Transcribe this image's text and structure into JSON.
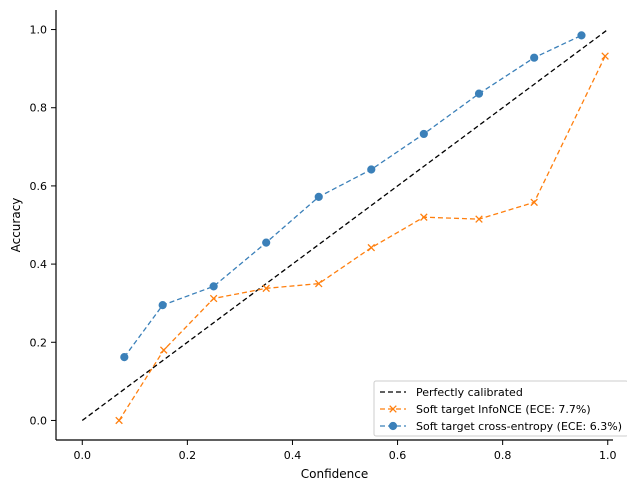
{
  "chart_data": {
    "type": "line",
    "title": "",
    "xlabel": "Confidence",
    "ylabel": "Accuracy",
    "xlim": [
      -0.05,
      1.01
    ],
    "ylim": [
      -0.05,
      1.05
    ],
    "xticks": [
      0.0,
      0.2,
      0.4,
      0.6,
      0.8,
      1.0
    ],
    "yticks": [
      0.0,
      0.2,
      0.4,
      0.6,
      0.8,
      1.0
    ],
    "xtick_labels": [
      "0.0",
      "0.2",
      "0.4",
      "0.6",
      "0.8",
      "1.0"
    ],
    "ytick_labels": [
      "0.0",
      "0.2",
      "0.4",
      "0.6",
      "0.8",
      "1.0"
    ],
    "grid": false,
    "legend_position": "bottom-right",
    "series": [
      {
        "name": "Perfectly calibrated",
        "style": "dashed",
        "marker": "none",
        "color": "#000000",
        "x": [
          0.0,
          1.0
        ],
        "y": [
          0.0,
          1.0
        ]
      },
      {
        "name": "Soft target InfoNCE (ECE: 7.7%)",
        "style": "dashed",
        "marker": "x",
        "color": "#ff7f0e",
        "x": [
          0.07,
          0.155,
          0.25,
          0.35,
          0.45,
          0.55,
          0.65,
          0.755,
          0.86,
          0.995
        ],
        "y": [
          0.0,
          0.18,
          0.312,
          0.338,
          0.35,
          0.442,
          0.52,
          0.515,
          0.558,
          0.932
        ]
      },
      {
        "name": "Soft target cross-entropy (ECE: 6.3%)",
        "style": "dashed",
        "marker": "circle",
        "color": "#3b80b9",
        "x": [
          0.08,
          0.153,
          0.25,
          0.35,
          0.45,
          0.55,
          0.65,
          0.755,
          0.86,
          0.95
        ],
        "y": [
          0.162,
          0.295,
          0.343,
          0.455,
          0.572,
          0.642,
          0.733,
          0.836,
          0.928,
          0.985
        ]
      }
    ]
  }
}
